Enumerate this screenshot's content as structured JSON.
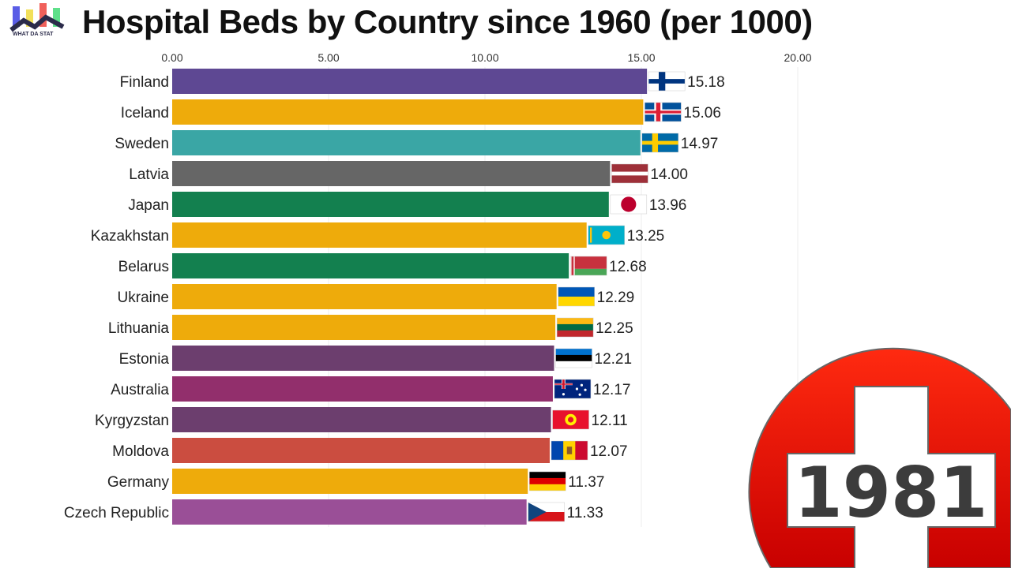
{
  "title": "Hospital Beds by Country since 1960 (per 1000)",
  "logo": {
    "text": "WHAT DA STAT"
  },
  "year": "1981",
  "chart_data": {
    "type": "bar",
    "orientation": "horizontal",
    "title": "Hospital Beds by Country since 1960 (per 1000)",
    "xlim": [
      0,
      20
    ],
    "ticks": [
      "0.00",
      "5.00",
      "10.00",
      "15.00",
      "20.00"
    ],
    "tick_values": [
      0,
      5,
      10,
      15,
      20
    ],
    "grid": true,
    "categories": [
      "Finland",
      "Iceland",
      "Sweden",
      "Latvia",
      "Japan",
      "Kazakhstan",
      "Belarus",
      "Ukraine",
      "Lithuania",
      "Estonia",
      "Australia",
      "Kyrgyzstan",
      "Moldova",
      "Germany",
      "Czech Republic"
    ],
    "values": [
      15.18,
      15.06,
      14.97,
      14.0,
      13.96,
      13.25,
      12.68,
      12.29,
      12.25,
      12.21,
      12.17,
      12.11,
      12.07,
      11.37,
      11.33
    ],
    "labels": [
      "15.18",
      "15.06",
      "14.97",
      "14.00",
      "13.96",
      "13.25",
      "12.68",
      "12.29",
      "12.25",
      "12.21",
      "12.17",
      "12.11",
      "12.07",
      "11.37",
      "11.33"
    ],
    "colors": [
      "#5e4893",
      "#eeab0b",
      "#3aa6a5",
      "#666666",
      "#13804f",
      "#eeab0b",
      "#13804f",
      "#eeab0b",
      "#eeab0b",
      "#6c3e6e",
      "#922f6c",
      "#6c3e6e",
      "#cb4d40",
      "#eeab0b",
      "#9a4f97"
    ],
    "flags": [
      "fi",
      "is",
      "se",
      "lv",
      "jp",
      "kz",
      "by",
      "ua",
      "lt",
      "ee",
      "au",
      "kg",
      "md",
      "de",
      "cz"
    ]
  }
}
